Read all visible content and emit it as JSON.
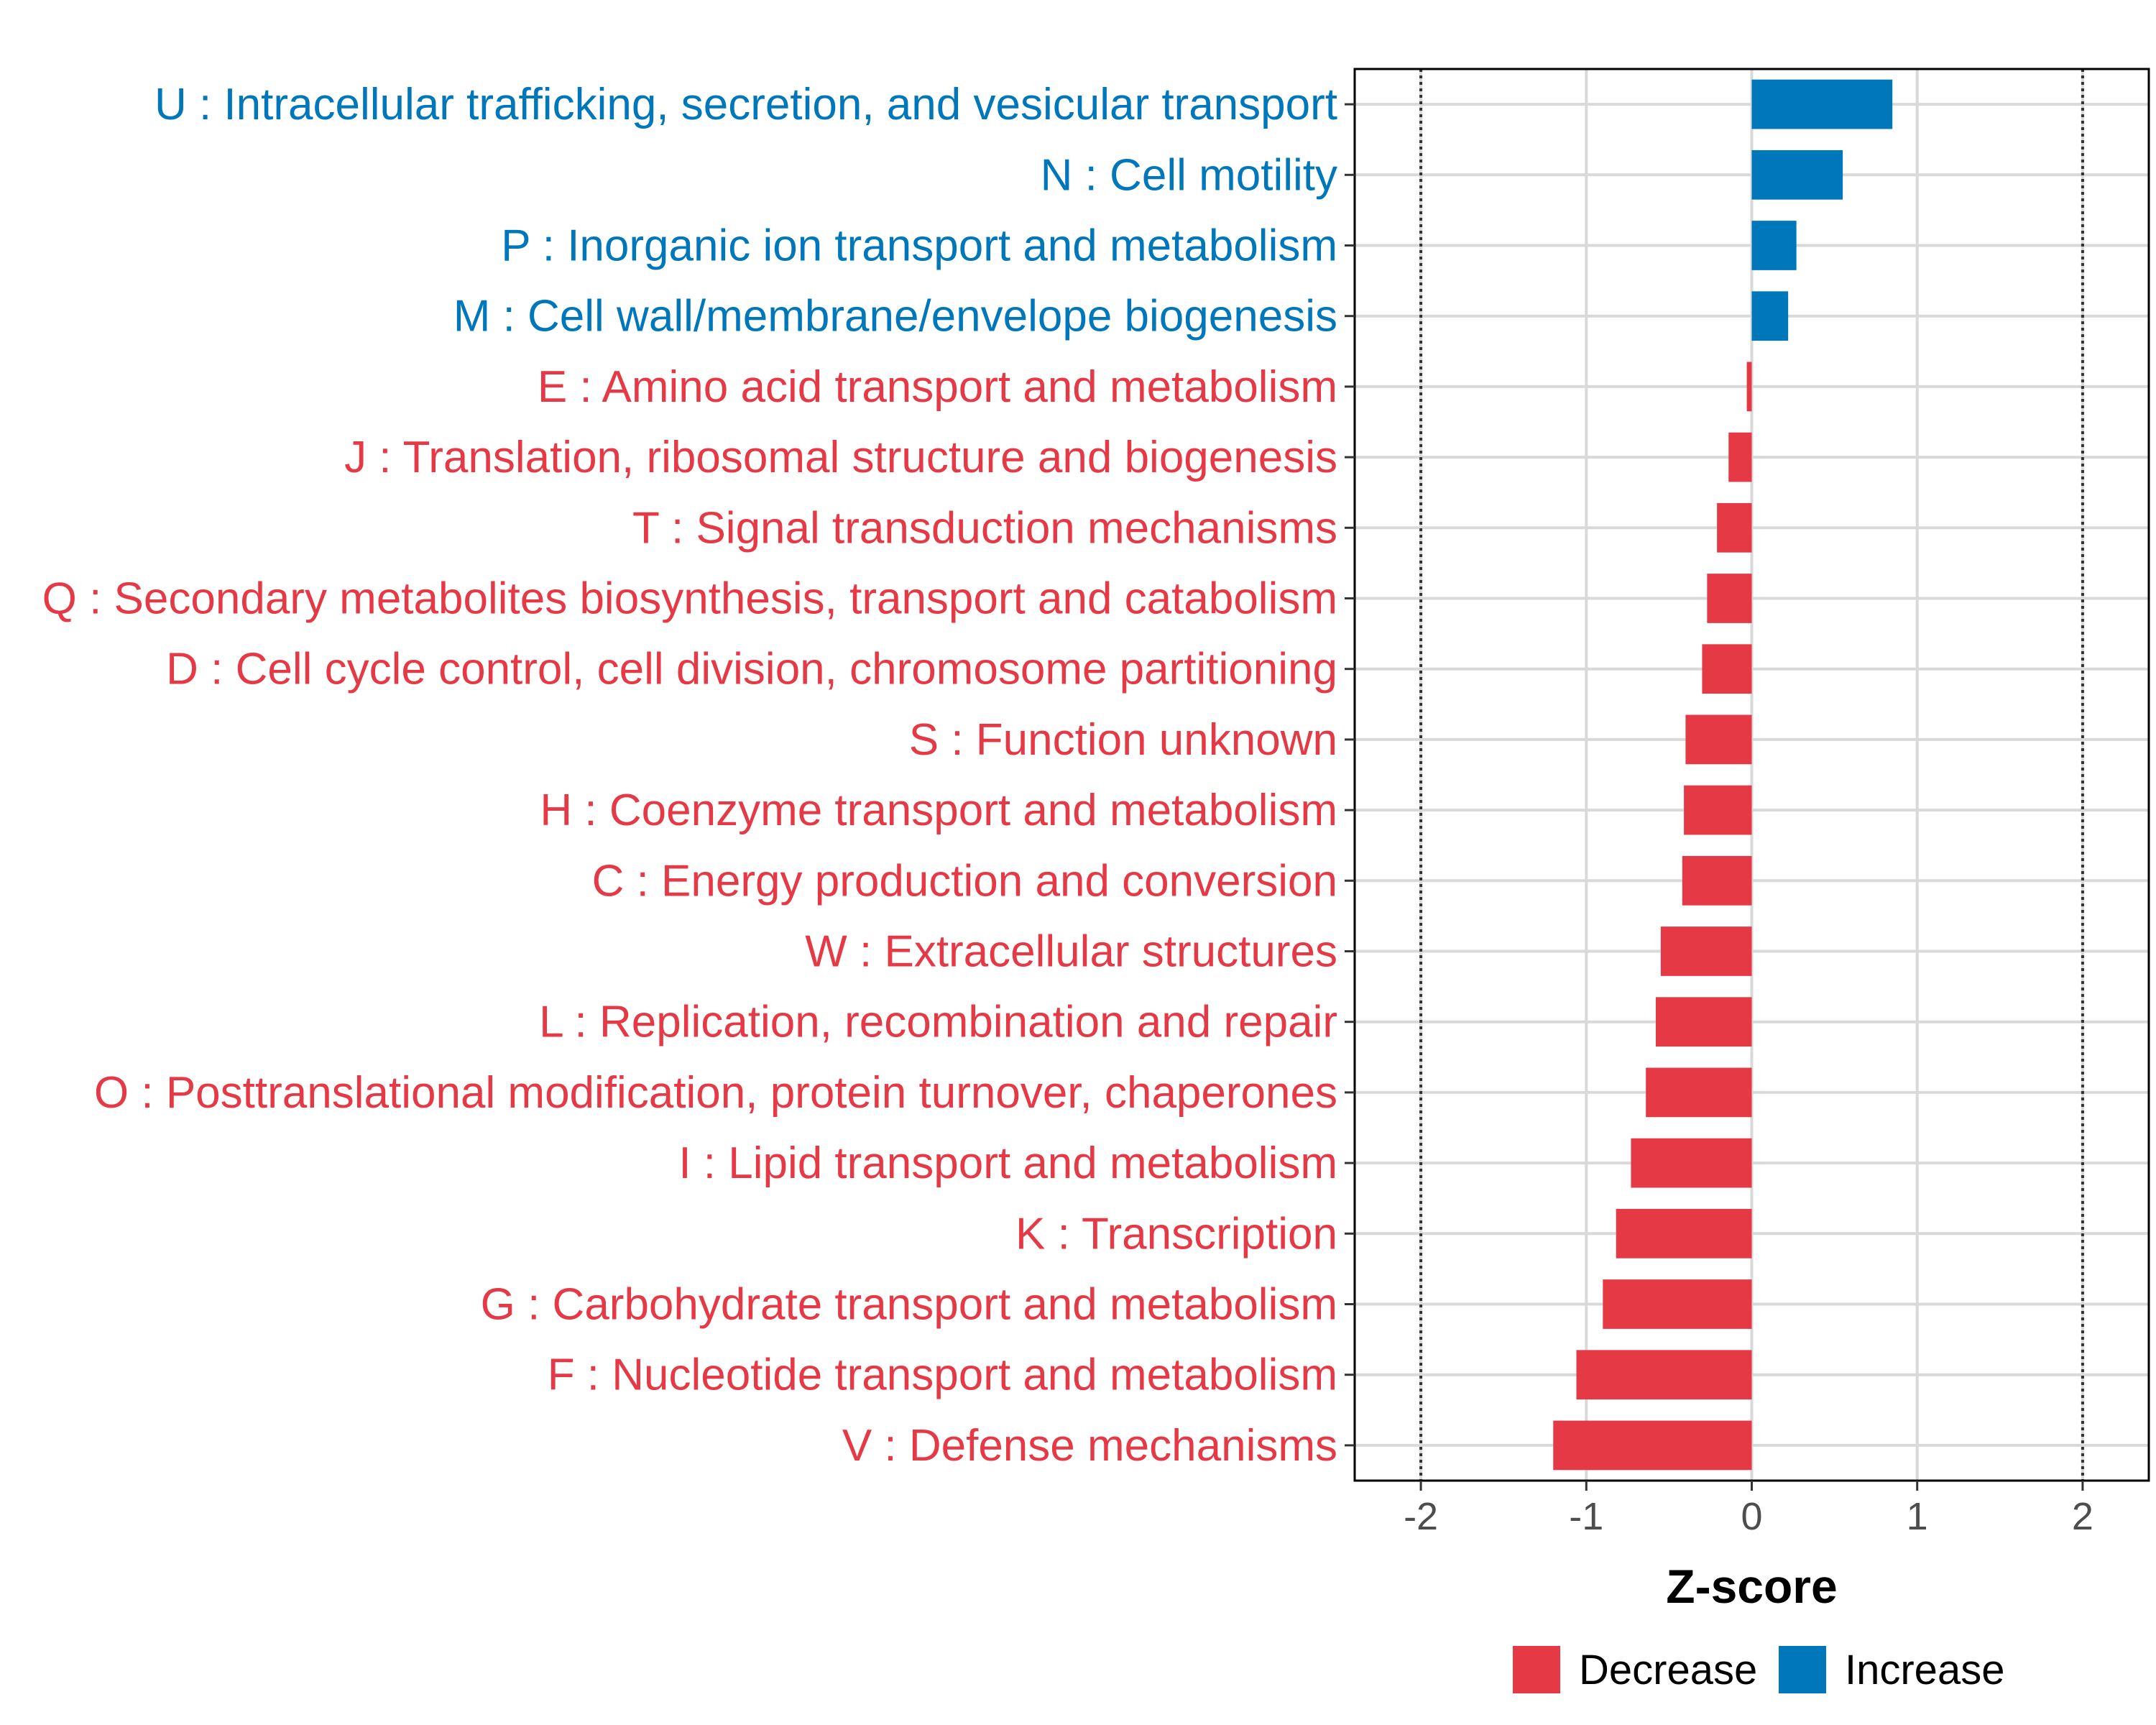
{
  "chart_data": {
    "type": "bar",
    "orientation": "horizontal",
    "categories": [
      "U : Intracellular trafficking, secretion, and vesicular transport",
      "N : Cell motility",
      "P : Inorganic ion transport and metabolism",
      "M : Cell wall/membrane/envelope biogenesis",
      "E : Amino acid transport and metabolism",
      "J : Translation, ribosomal structure and biogenesis",
      "T : Signal transduction mechanisms",
      "Q : Secondary metabolites biosynthesis, transport and catabolism",
      "D : Cell cycle control, cell division, chromosome partitioning",
      "S : Function unknown",
      "H : Coenzyme transport and metabolism",
      "C : Energy production and conversion",
      "W : Extracellular structures",
      "L : Replication, recombination and repair",
      "O : Posttranslational modification, protein turnover, chaperones",
      "I : Lipid transport and metabolism",
      "K : Transcription",
      "G : Carbohydrate transport and metabolism",
      "F : Nucleotide transport and metabolism",
      "V : Defense mechanisms"
    ],
    "values": [
      0.85,
      0.55,
      0.27,
      0.22,
      -0.03,
      -0.14,
      -0.21,
      -0.27,
      -0.3,
      -0.4,
      -0.41,
      -0.42,
      -0.55,
      -0.58,
      -0.64,
      -0.73,
      -0.82,
      -0.9,
      -1.06,
      -1.2
    ],
    "groups": [
      "Increase",
      "Increase",
      "Increase",
      "Increase",
      "Decrease",
      "Decrease",
      "Decrease",
      "Decrease",
      "Decrease",
      "Decrease",
      "Decrease",
      "Decrease",
      "Decrease",
      "Decrease",
      "Decrease",
      "Decrease",
      "Decrease",
      "Decrease",
      "Decrease",
      "Decrease"
    ],
    "xlabel": "Z-score",
    "ylabel": "",
    "xlim": [
      -2.4,
      2.4
    ],
    "xticks": [
      -2,
      -1,
      0,
      1,
      2
    ],
    "xtick_labels": [
      "-2",
      "-1",
      "0",
      "1",
      "2"
    ],
    "reference_lines": [
      -2,
      2
    ],
    "grid": true,
    "legend": {
      "position": "bottom",
      "entries": [
        {
          "label": "Decrease",
          "color": "#E63946"
        },
        {
          "label": "Increase",
          "color": "#0077BB"
        }
      ]
    },
    "colors": {
      "Decrease": "#E63946",
      "Increase": "#0077BB"
    }
  }
}
